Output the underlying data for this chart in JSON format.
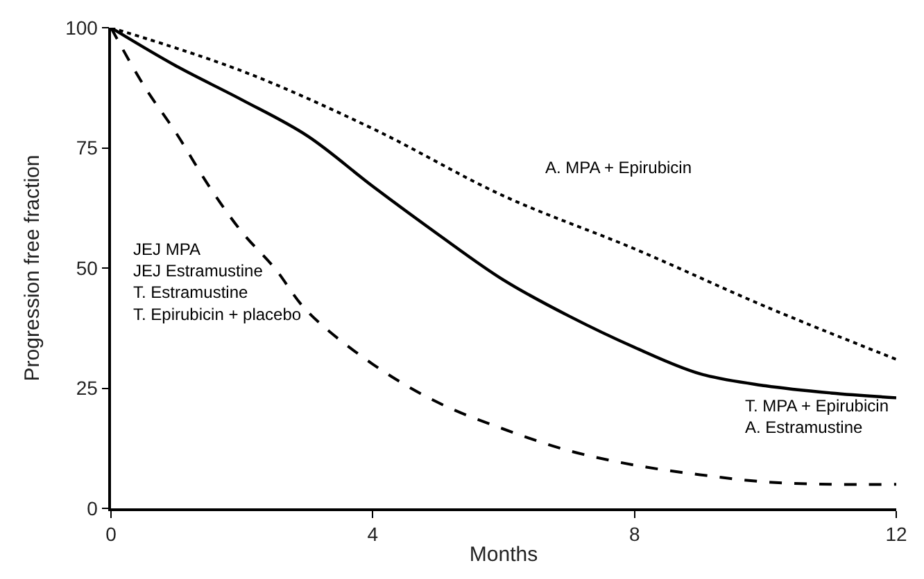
{
  "chart_data": {
    "type": "line",
    "xlabel": "Months",
    "ylabel": "Progression free fraction",
    "xlim": [
      0,
      12
    ],
    "xticks": [
      0,
      4,
      8,
      12
    ],
    "ylim": [
      0,
      100
    ],
    "yticks": [
      0,
      25,
      50,
      75,
      100
    ],
    "legend": false,
    "marker": "none",
    "series": [
      {
        "name": "A. MPA + Epirubicin",
        "color": "#000000",
        "line_style": "dotted",
        "x": [
          0,
          2,
          4,
          6,
          8,
          10,
          12
        ],
        "values": [
          100,
          91,
          79,
          65,
          54,
          42,
          31
        ]
      },
      {
        "name": "T. MPA + Epirubicin\nA. Estramustine",
        "color": "#000000",
        "line_style": "solid",
        "x": [
          0,
          1,
          2,
          3,
          4,
          5,
          6,
          7,
          8,
          9,
          10,
          11,
          12
        ],
        "values": [
          100,
          92,
          85,
          77.5,
          67,
          57,
          47.5,
          40,
          33.5,
          28,
          25.5,
          24,
          23
        ]
      },
      {
        "name": "JEJ MPA\nJEJ Estramustine\nT. Estramustine\nT. Epirubicin + placebo",
        "color": "#000000",
        "line_style": "dashed",
        "x": [
          0,
          0.5,
          1,
          1.5,
          2,
          2.5,
          3,
          4,
          5,
          6,
          7,
          8,
          9,
          10,
          11,
          12
        ],
        "values": [
          100,
          88,
          78,
          67,
          57.5,
          50,
          41,
          30,
          22,
          16.5,
          12,
          9,
          7,
          5.5,
          5,
          5
        ]
      }
    ]
  }
}
